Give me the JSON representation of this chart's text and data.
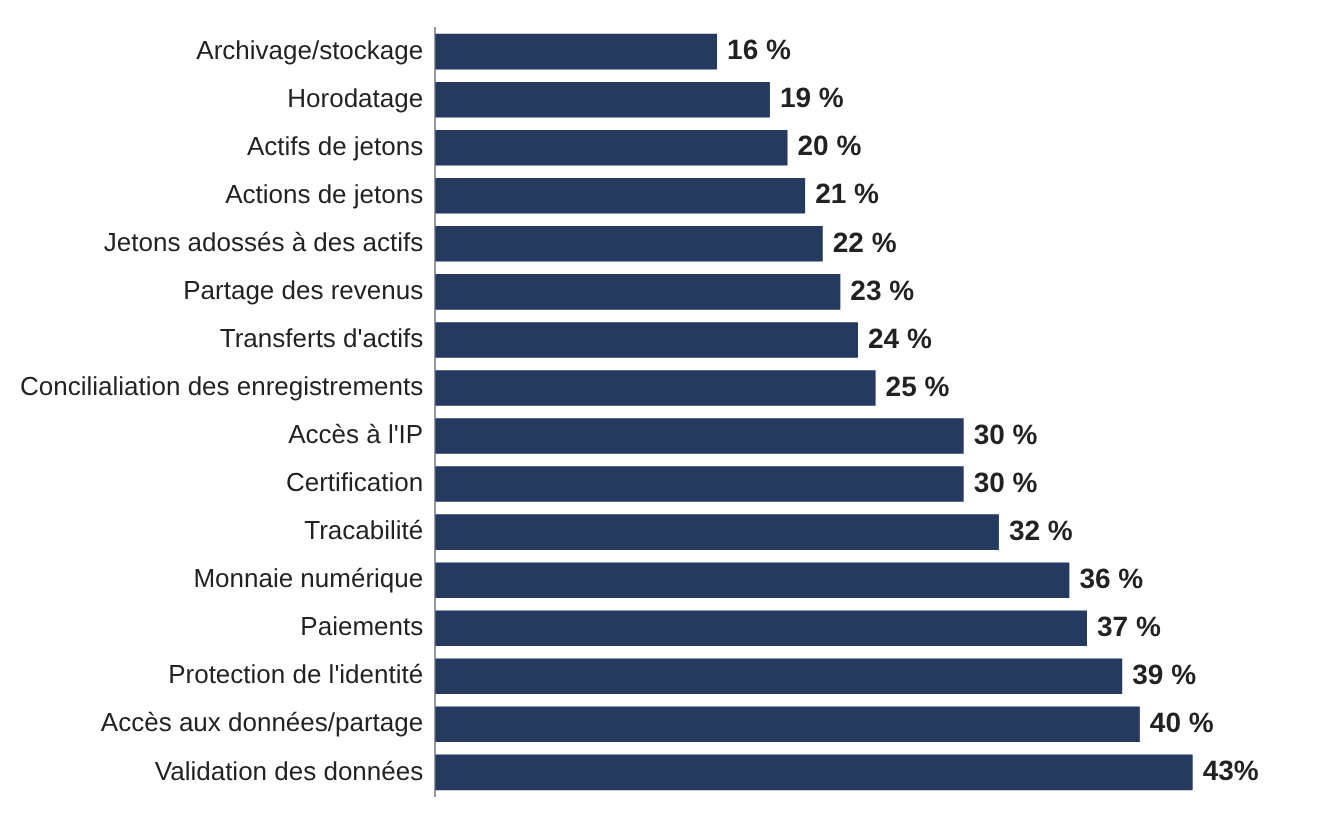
{
  "chart_data": {
    "type": "bar",
    "orientation": "horizontal",
    "categories": [
      "Archivage/stockage",
      "Horodatage",
      "Actifs de jetons",
      "Actions de jetons",
      "Jetons adossés à des actifs",
      "Partage des revenus",
      "Transferts d'actifs",
      "Concilialiation des enregistrements",
      "Accès à l'IP",
      "Certification",
      "Tracabilité",
      "Monnaie numérique",
      "Paiements",
      "Protection de l'identité",
      "Accès aux données/partage",
      "Validation des données"
    ],
    "values": [
      16,
      19,
      20,
      21,
      22,
      23,
      24,
      25,
      30,
      30,
      32,
      36,
      37,
      39,
      40,
      43
    ],
    "value_labels": [
      "16 %",
      "19 %",
      "20 %",
      "21 %",
      "22 %",
      "23 %",
      "24 %",
      "25 %",
      "30 %",
      "30 %",
      "32 %",
      "36 %",
      "37 %",
      "39 %",
      "40 %",
      "43%"
    ],
    "color": "#243a5e",
    "legend": false
  }
}
